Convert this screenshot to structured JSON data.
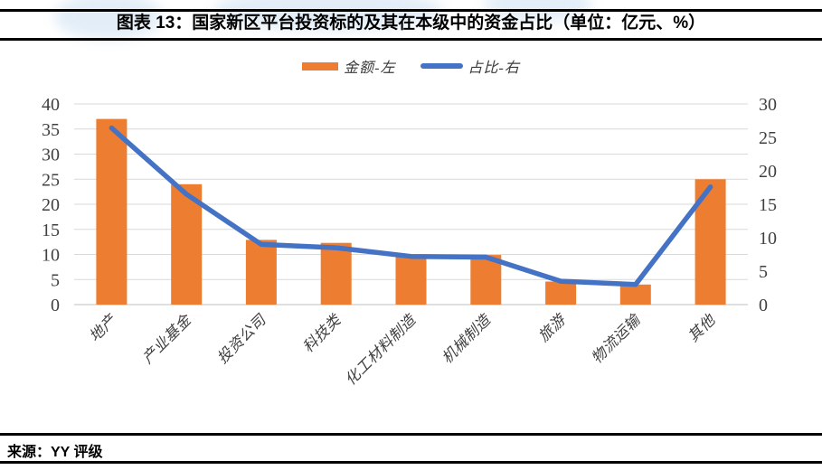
{
  "header": {
    "title": "图表 13：国家新区平台投资标的及其在本级中的资金占比（单位：亿元、%）"
  },
  "footer": {
    "source": "来源：YY 评级"
  },
  "chart_data": {
    "type": "bar+line combo",
    "categories": [
      "地产",
      "产业基金",
      "投资公司",
      "科技类",
      "化工材料制造",
      "机械制造",
      "旅游",
      "物流运输",
      "其他"
    ],
    "series": [
      {
        "name": "金额-左",
        "type": "bar",
        "axis": "left",
        "color": "#ED7D31",
        "values": [
          37,
          24,
          12.9,
          12.3,
          9.5,
          9.9,
          4.6,
          4.0,
          25
        ]
      },
      {
        "name": "占比-右",
        "type": "line",
        "axis": "right",
        "color": "#4472C4",
        "values": [
          26.4,
          16.5,
          9.0,
          8.5,
          7.2,
          7.1,
          3.5,
          3.0,
          17.6
        ]
      }
    ],
    "left_axis": {
      "min": 0,
      "max": 40,
      "step": 5
    },
    "right_axis": {
      "min": 0,
      "max": 30,
      "step": 5
    },
    "grid": true,
    "legend_position": "top",
    "x_label_rotation_deg": -45,
    "style": {
      "grid_color": "#D9D9D9",
      "axis_line_color": "#BFBFBF",
      "tick_label_color": "#404040"
    }
  }
}
